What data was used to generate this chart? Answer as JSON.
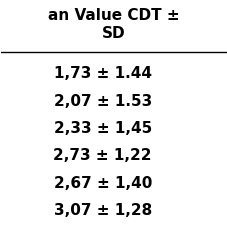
{
  "header": "an Value CDT ±\nSD",
  "rows": [
    "1,73 ± 1.44",
    "2,07 ± 1.53",
    "2,33 ± 1,45",
    "2,73 ± 1,22",
    "2,67 ± 1,40",
    "3,07 ± 1,28"
  ],
  "background_color": "#ffffff",
  "text_color": "#000000",
  "font_size": 11,
  "header_font_size": 11
}
